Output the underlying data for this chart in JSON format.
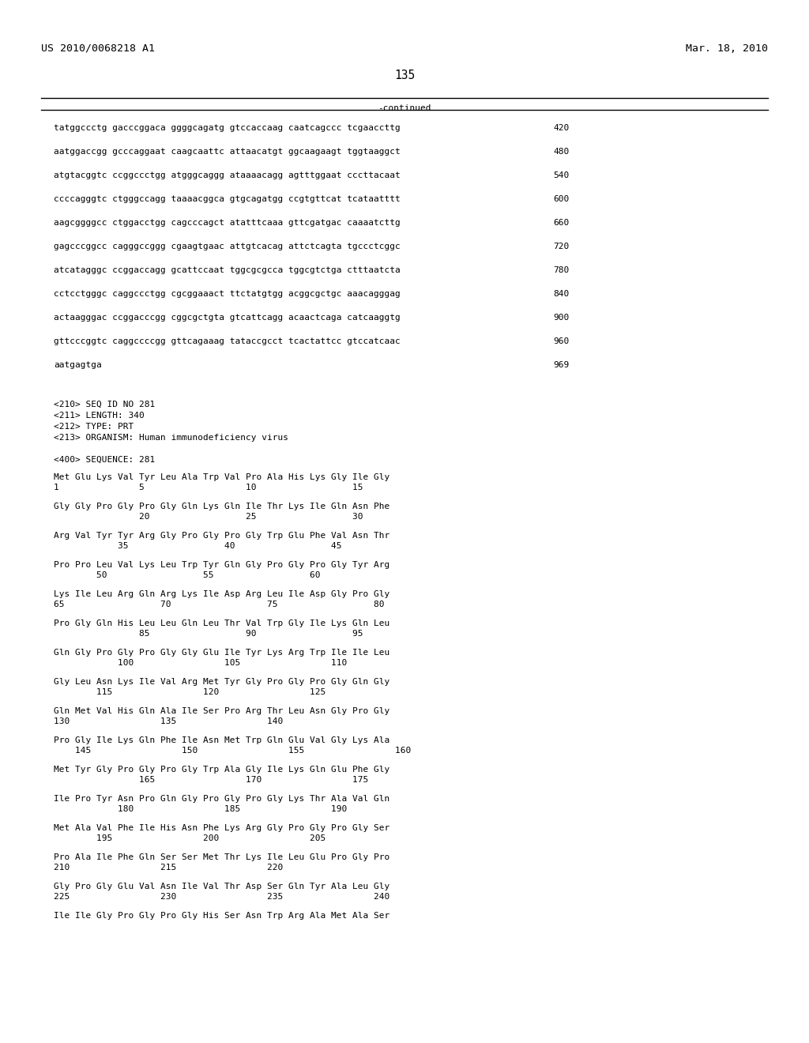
{
  "header_left": "US 2010/0068218 A1",
  "header_right": "Mar. 18, 2010",
  "page_number": "135",
  "continued_label": "-continued",
  "background_color": "#ffffff",
  "text_color": "#000000",
  "font_size_header": 9.5,
  "font_size_body": 8.0,
  "font_size_page": 10.5,
  "dna_lines": [
    [
      "tatggccctg gacccggaca ggggcagatg gtccaccaag caatcagccc tcgaaccttg",
      "420"
    ],
    [
      "aatggaccgg gcccaggaat caagcaattc attaacatgt ggcaagaagt tggtaaggct",
      "480"
    ],
    [
      "atgtacggtc ccggccctgg atgggcaggg ataaaacagg agtttggaat cccttacaat",
      "540"
    ],
    [
      "ccccagggtc ctgggccagg taaaacggca gtgcagatgg ccgtgttcat tcataatttt",
      "600"
    ],
    [
      "aagcggggcc ctggacctgg cagcccagct atatttcaaa gttcgatgac caaaatcttg",
      "660"
    ],
    [
      "gagcccggcc cagggccggg cgaagtgaac attgtcacag attctcagta tgccctcggc",
      "720"
    ],
    [
      "atcatagggc ccggaccagg gcattccaat tggcgcgcca tggcgtctga ctttaatcta",
      "780"
    ],
    [
      "cctcctgggc caggccctgg cgcggaaact ttctatgtgg acggcgctgc aaacagggag",
      "840"
    ],
    [
      "actaagggac ccggacccgg cggcgctgta gtcattcagg acaactcaga catcaaggtg",
      "900"
    ],
    [
      "gttcccggtc caggccccgg gttcagaaag tataccgcct tcactattcc gtccatcaac",
      "960"
    ],
    [
      "aatgagtga",
      "969"
    ]
  ],
  "meta_lines": [
    "<210> SEQ ID NO 281",
    "<211> LENGTH: 340",
    "<212> TYPE: PRT",
    "<213> ORGANISM: Human immunodeficiency virus"
  ],
  "sequence_label": "<400> SEQUENCE: 281",
  "protein_lines": [
    {
      "seq": "Met Glu Lys Val Tyr Leu Ala Trp Val Pro Ala His Lys Gly Ile Gly",
      "nums": "1               5                   10                  15"
    },
    {
      "seq": "Gly Gly Pro Gly Pro Gly Gln Lys Gln Ile Thr Lys Ile Gln Asn Phe",
      "nums": "                20                  25                  30"
    },
    {
      "seq": "Arg Val Tyr Tyr Arg Gly Pro Gly Pro Gly Trp Glu Phe Val Asn Thr",
      "nums": "            35                  40                  45"
    },
    {
      "seq": "Pro Pro Leu Val Lys Leu Trp Tyr Gln Gly Pro Gly Pro Gly Tyr Arg",
      "nums": "        50                  55                  60"
    },
    {
      "seq": "Lys Ile Leu Arg Gln Arg Lys Ile Asp Arg Leu Ile Asp Gly Pro Gly",
      "nums": "65                  70                  75                  80"
    },
    {
      "seq": "Pro Gly Gln His Leu Leu Gln Leu Thr Val Trp Gly Ile Lys Gln Leu",
      "nums": "                85                  90                  95"
    },
    {
      "seq": "Gln Gly Pro Gly Pro Gly Gly Glu Ile Tyr Lys Arg Trp Ile Ile Leu",
      "nums": "            100                 105                 110"
    },
    {
      "seq": "Gly Leu Asn Lys Ile Val Arg Met Tyr Gly Pro Gly Pro Gly Gln Gly",
      "nums": "        115                 120                 125"
    },
    {
      "seq": "Gln Met Val His Gln Ala Ile Ser Pro Arg Thr Leu Asn Gly Pro Gly",
      "nums": "130                 135                 140"
    },
    {
      "seq": "Pro Gly Ile Lys Gln Phe Ile Asn Met Trp Gln Glu Val Gly Lys Ala",
      "nums": "    145                 150                 155                 160"
    },
    {
      "seq": "Met Tyr Gly Pro Gly Pro Gly Trp Ala Gly Ile Lys Gln Glu Phe Gly",
      "nums": "                165                 170                 175"
    },
    {
      "seq": "Ile Pro Tyr Asn Pro Gln Gly Pro Gly Pro Gly Lys Thr Ala Val Gln",
      "nums": "            180                 185                 190"
    },
    {
      "seq": "Met Ala Val Phe Ile His Asn Phe Lys Arg Gly Pro Gly Pro Gly Ser",
      "nums": "        195                 200                 205"
    },
    {
      "seq": "Pro Ala Ile Phe Gln Ser Ser Met Thr Lys Ile Leu Glu Pro Gly Pro",
      "nums": "210                 215                 220"
    },
    {
      "seq": "Gly Pro Gly Glu Val Asn Ile Val Thr Asp Ser Gln Tyr Ala Leu Gly",
      "nums": "225                 230                 235                 240"
    },
    {
      "seq": "Ile Ile Gly Pro Gly Pro Gly His Ser Asn Trp Arg Ala Met Ala Ser",
      "nums": ""
    }
  ]
}
